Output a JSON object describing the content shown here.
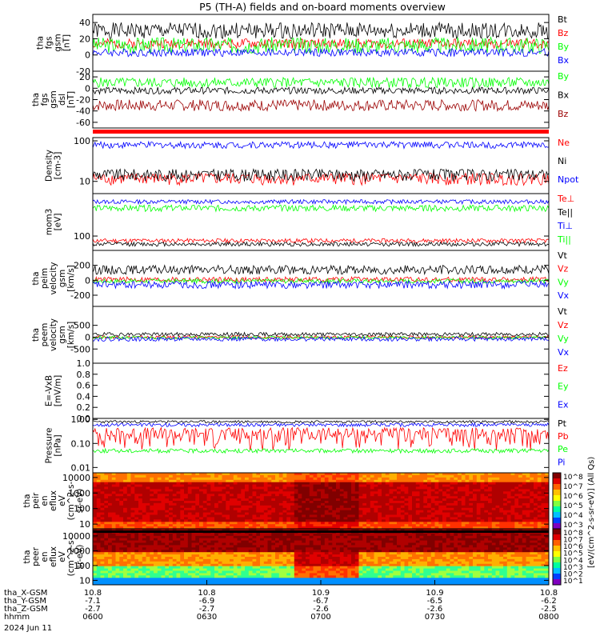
{
  "title": "P5 (TH-A) fields and on-board moments overview",
  "colors": {
    "black": "#000000",
    "red": "#ff0000",
    "green": "#00ff00",
    "blue": "#0000ff",
    "darkred": "#9b0000",
    "bar_red": "#ff0000"
  },
  "chart_data": [
    {
      "type": "line",
      "ylabel": [
        "tha",
        "fgs",
        "gsm",
        "[nT]"
      ],
      "ylim": [
        -20,
        50
      ],
      "yticks": [
        -20,
        0,
        20,
        40
      ],
      "series": [
        {
          "name": "Bt",
          "color": "black",
          "base": 30,
          "amp": 10,
          "seed": 1
        },
        {
          "name": "Bz",
          "color": "red",
          "base": 14,
          "amp": 6,
          "seed": 2
        },
        {
          "name": "By",
          "color": "green",
          "base": 12,
          "amp": 10,
          "seed": 3
        },
        {
          "name": "Bx",
          "color": "blue",
          "base": 3,
          "amp": 5,
          "seed": 4
        }
      ]
    },
    {
      "type": "line",
      "ylabel": [
        "tha",
        "fgs",
        "gsm",
        "dsl",
        "[nT]"
      ],
      "ylim": [
        -70,
        30
      ],
      "yticks": [
        -60,
        -40,
        -20,
        0,
        20
      ],
      "series": [
        {
          "name": "By",
          "color": "green",
          "base": 10,
          "amp": 9,
          "seed": 5
        },
        {
          "name": "Bx",
          "color": "black",
          "base": -4,
          "amp": 6,
          "seed": 6
        },
        {
          "name": "Bz",
          "color": "darkred",
          "base": -30,
          "amp": 10,
          "seed": 7
        }
      ]
    },
    {
      "type": "line",
      "ylabel": [
        "Density",
        "[cm-3]"
      ],
      "scale": "log",
      "ylim": [
        5,
        120
      ],
      "yticks": [
        10,
        100
      ],
      "yticklabels": [
        "10",
        "100"
      ],
      "series": [
        {
          "name": "Ne",
          "color": "red",
          "base": 12,
          "amp": 4,
          "seed": 8
        },
        {
          "name": "Ni",
          "color": "black",
          "base": 15,
          "amp": 5,
          "seed": 9
        },
        {
          "name": "Npot",
          "color": "blue",
          "base": 80,
          "amp": 15,
          "seed": 10
        }
      ]
    },
    {
      "type": "line",
      "ylabel": [
        "mom3",
        "[eV]"
      ],
      "scale": "log",
      "ylim": [
        40,
        1500
      ],
      "yticks": [
        100
      ],
      "yticklabels": [
        "100"
      ],
      "series": [
        {
          "name": "Te⊥",
          "color": "red",
          "base": 75,
          "amp": 10,
          "seed": 11
        },
        {
          "name": "Te||",
          "color": "black",
          "base": 60,
          "amp": 8,
          "seed": 12
        },
        {
          "name": "Ti⊥",
          "color": "blue",
          "base": 900,
          "amp": 120,
          "seed": 13
        },
        {
          "name": "Ti||",
          "color": "green",
          "base": 600,
          "amp": 120,
          "seed": 14
        }
      ]
    },
    {
      "type": "line",
      "ylabel": [
        "tha",
        "peim",
        "velocity",
        "gsm",
        "[km/s]"
      ],
      "ylim": [
        -350,
        400
      ],
      "yticks": [
        -200,
        0,
        200
      ],
      "series": [
        {
          "name": "Vt",
          "color": "black",
          "base": 140,
          "amp": 60,
          "seed": 15
        },
        {
          "name": "Vz",
          "color": "red",
          "base": 10,
          "amp": 35,
          "seed": 16
        },
        {
          "name": "Vy",
          "color": "green",
          "base": -10,
          "amp": 30,
          "seed": 17
        },
        {
          "name": "Vx",
          "color": "blue",
          "base": -60,
          "amp": 50,
          "seed": 18
        }
      ]
    },
    {
      "type": "line",
      "ylabel": [
        "tha",
        "peem",
        "velocity",
        "gsm",
        "[km/s]"
      ],
      "ylim": [
        -1100,
        1300
      ],
      "yticks": [
        -500,
        0,
        500
      ],
      "series": [
        {
          "name": "Vt",
          "color": "black",
          "base": 120,
          "amp": 80,
          "seed": 19
        },
        {
          "name": "Vz",
          "color": "red",
          "base": 0,
          "amp": 60,
          "seed": 20
        },
        {
          "name": "Vy",
          "color": "green",
          "base": -20,
          "amp": 60,
          "seed": 21
        },
        {
          "name": "Vx",
          "color": "blue",
          "base": -80,
          "amp": 90,
          "seed": 22
        }
      ]
    },
    {
      "type": "line",
      "ylabel": [
        "E=-VxB",
        "[mV/m]"
      ],
      "ylim": [
        0,
        1
      ],
      "yticks": [
        0.0,
        0.2,
        0.4,
        0.6,
        0.8,
        1.0
      ],
      "yticklabels": [
        "0.0",
        "0.2",
        "0.4",
        "0.6",
        "0.8",
        "1.0"
      ],
      "series": [
        {
          "name": "Ez",
          "color": "red"
        },
        {
          "name": "Ey",
          "color": "green"
        },
        {
          "name": "Ex",
          "color": "blue"
        }
      ]
    },
    {
      "type": "line",
      "ylabel": [
        "Pressure",
        "[nPa]"
      ],
      "scale": "log",
      "ylim": [
        0.006,
        1.1
      ],
      "yticks": [
        0.01,
        0.1,
        1
      ],
      "yticklabels": [
        "0.01",
        "0.10",
        "1.00"
      ],
      "series": [
        {
          "name": "Pt",
          "color": "black",
          "base": 0.8,
          "amp": 0.1,
          "seed": 23
        },
        {
          "name": "Pb",
          "color": "red",
          "base": 0.25,
          "amp": 0.2,
          "seed": 24
        },
        {
          "name": "Pe",
          "color": "green",
          "base": 0.05,
          "amp": 0.01,
          "seed": 25
        },
        {
          "name": "Pi",
          "color": "blue",
          "base": 0.6,
          "amp": 0.1,
          "seed": 26
        }
      ]
    },
    {
      "type": "heatmap",
      "ylabel": [
        "tha",
        "peir",
        "en",
        "eflux",
        "eV",
        "(cm^2-s-",
        "sr-eV)"
      ],
      "scale": "log",
      "ylim": [
        5,
        20000
      ],
      "yticks": [
        10,
        100,
        1000,
        10000
      ],
      "yticklabels": [
        "10",
        "100",
        "1000",
        "10000"
      ],
      "seed": 27,
      "profile": "ion"
    },
    {
      "type": "heatmap",
      "ylabel": [
        "tha",
        "peer",
        "en",
        "eflux",
        "eV",
        "(cm^2-s-",
        "sr-eV)"
      ],
      "scale": "log",
      "ylim": [
        5,
        30000
      ],
      "yticks": [
        10,
        100,
        1000,
        10000
      ],
      "yticklabels": [
        "10",
        "100",
        "1000",
        "10000"
      ],
      "seed": 28,
      "profile": "electron"
    }
  ],
  "colorbars": [
    {
      "ticks": [
        "10^8",
        "10^7",
        "10^6",
        "10^5",
        "10^4",
        "10^3"
      ]
    },
    {
      "ticks": [
        "10^8",
        "10^7",
        "10^6",
        "10^5",
        "10^4",
        "10^3",
        "10^2",
        "10^1"
      ]
    }
  ],
  "colorbar_label": "[eV/(cm^2-s-sr-eV)] (All Qs)",
  "xaxis": {
    "rows": [
      {
        "label": "tha_X-GSM",
        "values": [
          "10.8",
          "10.8",
          "10.9",
          "10.9",
          "10.8"
        ]
      },
      {
        "label": "tha_Y-GSM",
        "values": [
          "-7.1",
          "-6.9",
          "-6.7",
          "-6.5",
          "-6.2"
        ]
      },
      {
        "label": "tha_Z-GSM",
        "values": [
          "-2.7",
          "-2.7",
          "-2.6",
          "-2.6",
          "-2.5"
        ]
      },
      {
        "label": "hhmm",
        "values": [
          "0600",
          "0630",
          "0700",
          "0730",
          "0800"
        ]
      }
    ],
    "date": "2024 Jun 11"
  }
}
